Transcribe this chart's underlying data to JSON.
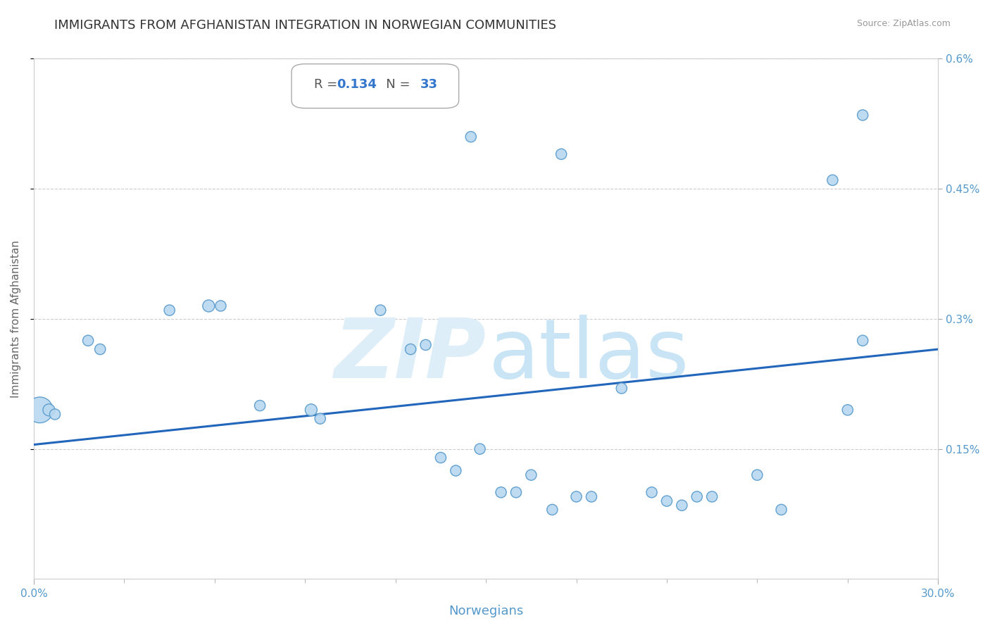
{
  "title": "IMMIGRANTS FROM AFGHANISTAN INTEGRATION IN NORWEGIAN COMMUNITIES",
  "source": "Source: ZipAtlas.com",
  "xlabel": "Norwegians",
  "ylabel": "Immigrants from Afghanistan",
  "R": "0.134",
  "N": "33",
  "xlim": [
    0.0,
    0.3
  ],
  "ylim": [
    0.0,
    0.006
  ],
  "xtick_vals": [
    0.0,
    0.3
  ],
  "xtick_labels": [
    "0.0%",
    "30.0%"
  ],
  "ytick_vals": [
    0.0015,
    0.003,
    0.0045,
    0.006
  ],
  "ytick_labels": [
    "0.15%",
    "0.3%",
    "0.45%",
    "0.6%"
  ],
  "scatter_x": [
    0.002,
    0.005,
    0.007,
    0.018,
    0.022,
    0.045,
    0.058,
    0.062,
    0.075,
    0.092,
    0.095,
    0.115,
    0.125,
    0.13,
    0.135,
    0.14,
    0.148,
    0.155,
    0.16,
    0.165,
    0.172,
    0.18,
    0.185,
    0.195,
    0.205,
    0.21,
    0.215,
    0.22,
    0.225,
    0.24,
    0.248,
    0.27,
    0.275
  ],
  "scatter_y": [
    0.00195,
    0.00195,
    0.0019,
    0.00275,
    0.00265,
    0.0031,
    0.00315,
    0.00315,
    0.002,
    0.00195,
    0.00185,
    0.0031,
    0.00265,
    0.0027,
    0.0014,
    0.00125,
    0.0015,
    0.001,
    0.001,
    0.0012,
    0.0008,
    0.00095,
    0.00095,
    0.0022,
    0.001,
    0.0009,
    0.00085,
    0.00095,
    0.00095,
    0.0012,
    0.0008,
    0.00195,
    0.00275
  ],
  "scatter_sizes": [
    700,
    150,
    120,
    120,
    120,
    120,
    150,
    120,
    120,
    150,
    120,
    120,
    120,
    120,
    120,
    120,
    120,
    120,
    120,
    120,
    120,
    120,
    120,
    120,
    120,
    120,
    120,
    120,
    120,
    120,
    120,
    120,
    120
  ],
  "high_points_x": [
    0.145,
    0.175,
    0.265,
    0.275
  ],
  "high_points_y": [
    0.0051,
    0.0049,
    0.0046,
    0.00535
  ],
  "high_points_sizes": [
    120,
    120,
    120,
    120
  ],
  "scatter_color": "#b8d8f0",
  "scatter_edge_color": "#5599cc",
  "line_color": "#2266bb",
  "regression_x0": 0.0,
  "regression_y0": 0.00155,
  "regression_x1": 0.3,
  "regression_y1": 0.00265,
  "grid_color": "#cccccc",
  "background_color": "#ffffff",
  "title_color": "#333333",
  "axis_label_color": "#5599cc",
  "source_color": "#999999",
  "ylabel_color": "#666666",
  "watermark_zip_color": "#ddeef8",
  "watermark_atlas_color": "#c8e4f5"
}
